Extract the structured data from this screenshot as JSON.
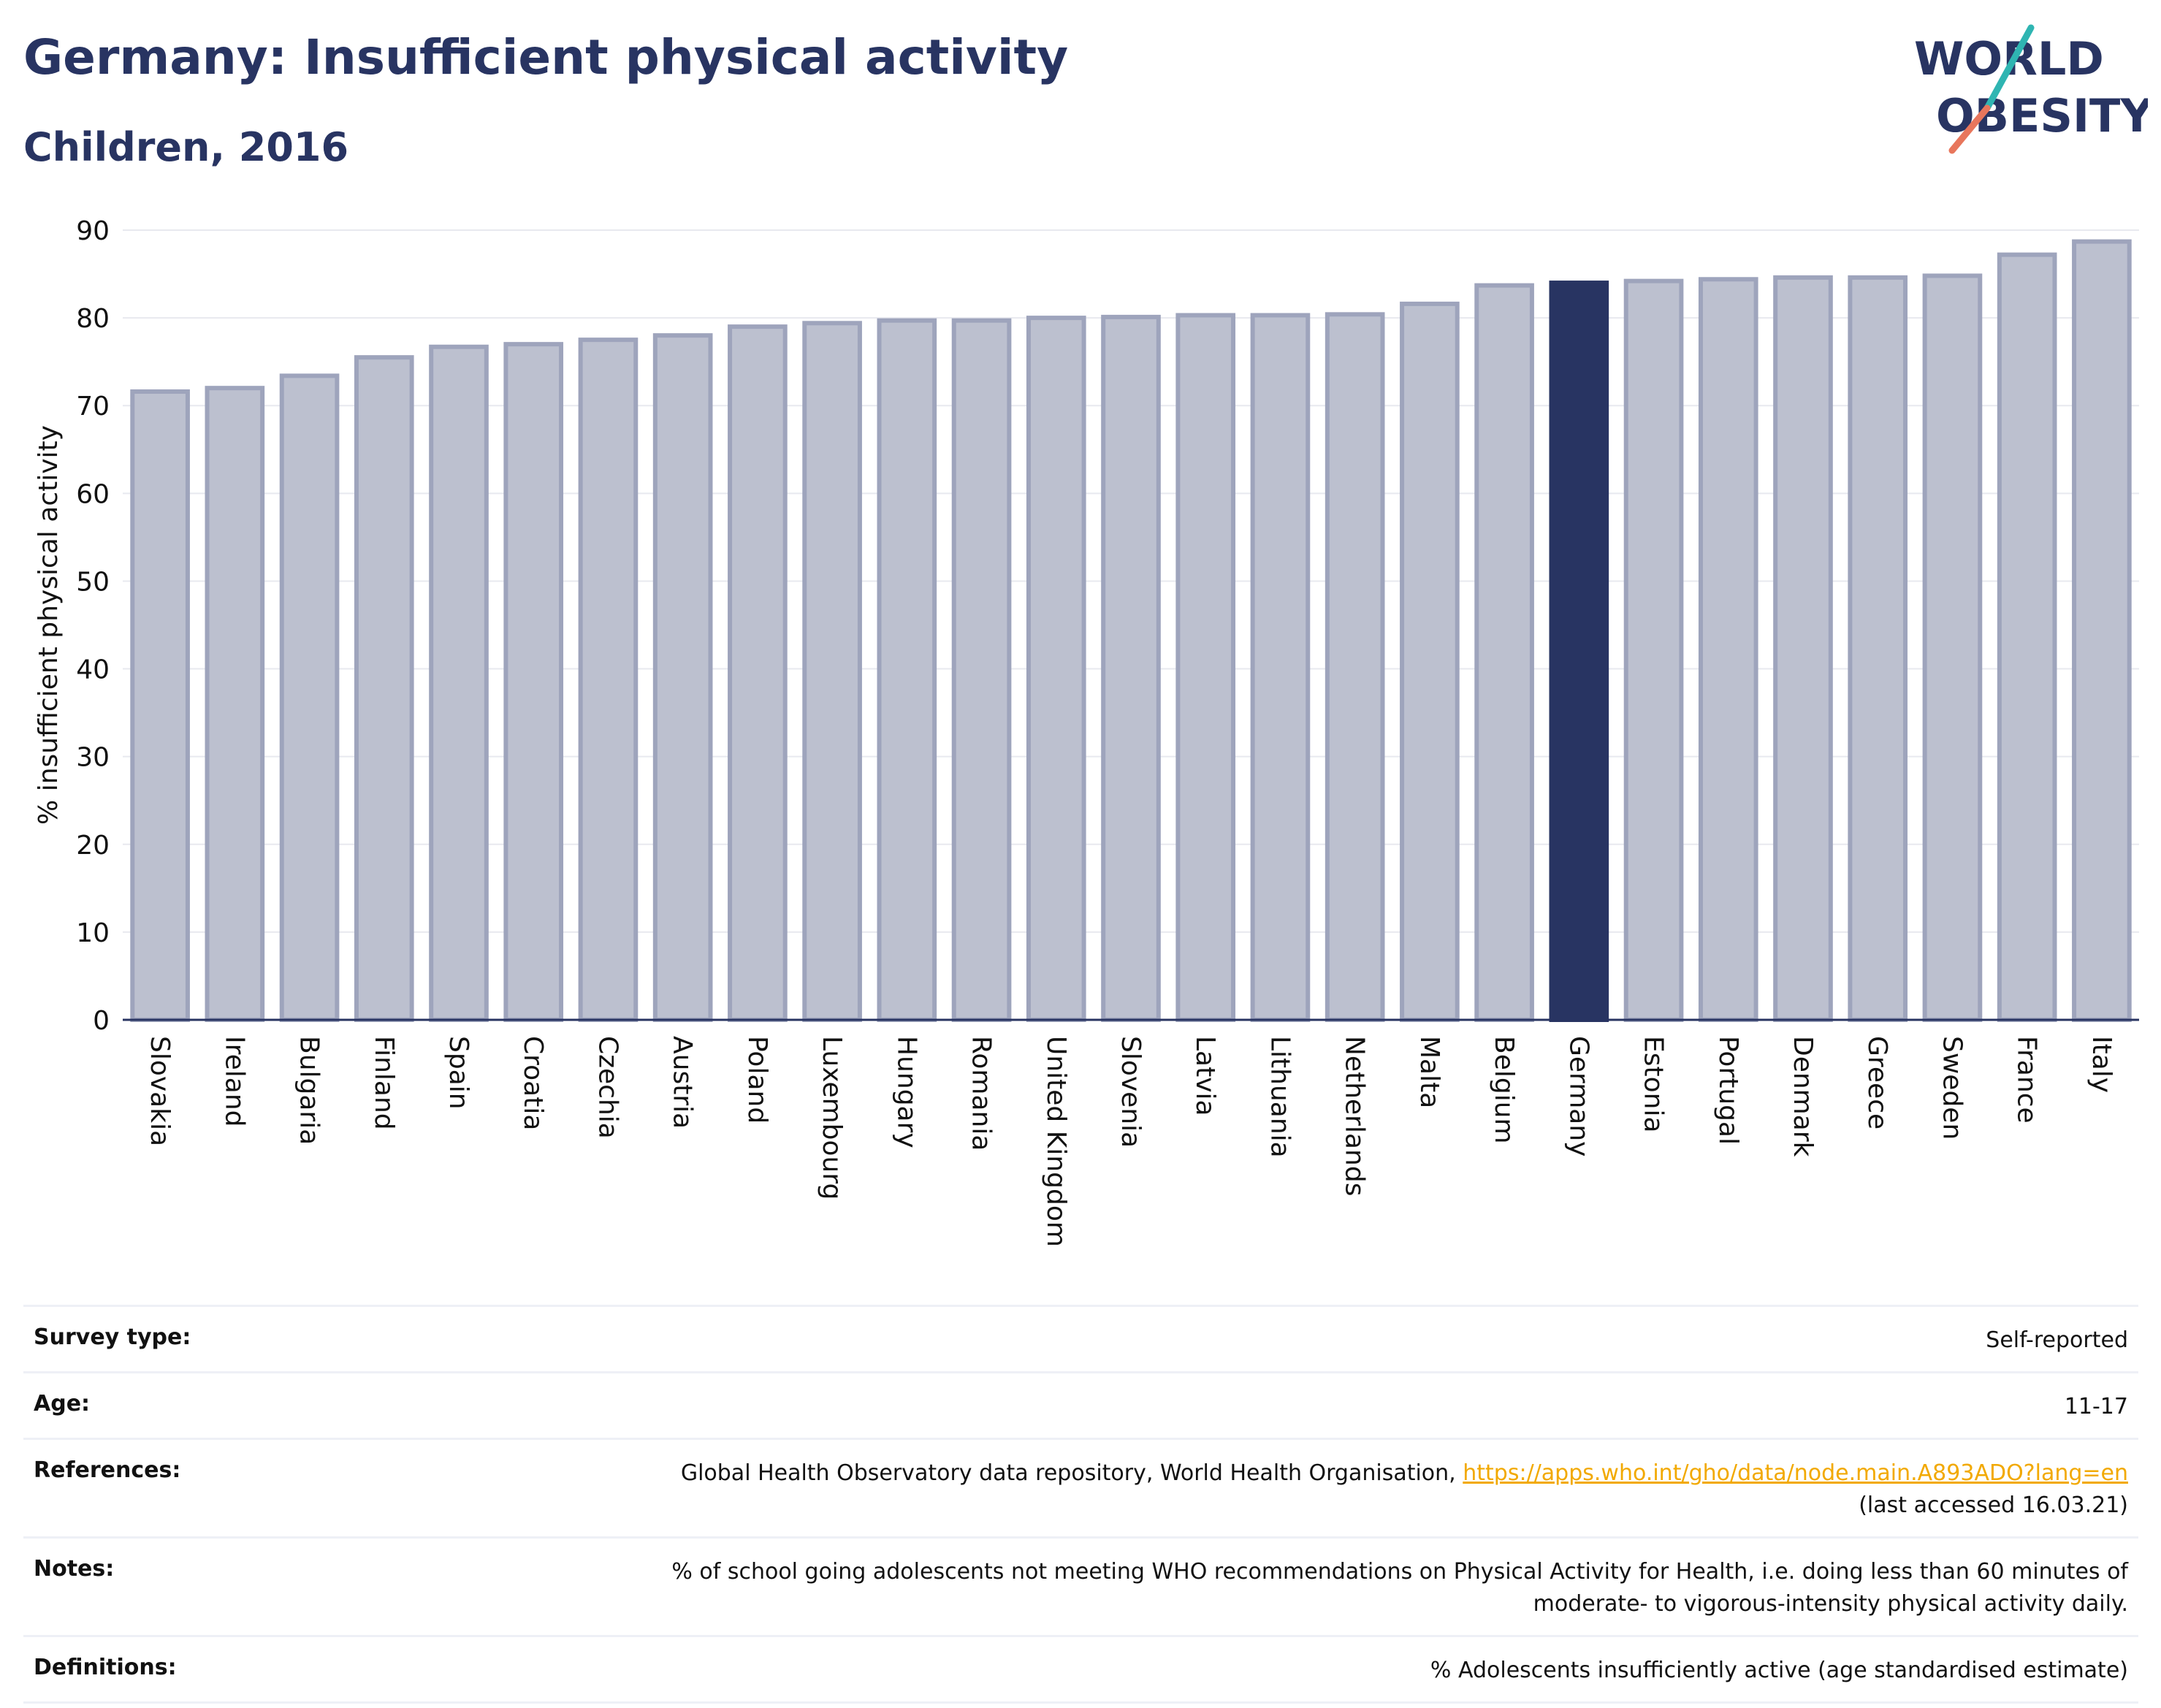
{
  "header": {
    "title": "Germany: Insufficient physical activity",
    "subtitle": "Children, 2016"
  },
  "logo": {
    "line1": "WORLD",
    "line2": "OBESITY"
  },
  "colors": {
    "highlight": "#283462",
    "bar": "#bcc0cf",
    "bar_border": "#9ea4bc",
    "text": "#283462"
  },
  "chart_data": {
    "type": "bar",
    "categories": [
      "Slovakia",
      "Ireland",
      "Bulgaria",
      "Finland",
      "Spain",
      "Croatia",
      "Czechia",
      "Austria",
      "Poland",
      "Luxembourg",
      "Hungary",
      "Romania",
      "United Kingdom",
      "Slovenia",
      "Latvia",
      "Lithuania",
      "Netherlands",
      "Malta",
      "Belgium",
      "Germany",
      "Estonia",
      "Portugal",
      "Denmark",
      "Greece",
      "Sweden",
      "France",
      "Italy"
    ],
    "values": [
      71.6,
      72.0,
      73.4,
      75.5,
      76.7,
      77.0,
      77.5,
      78.0,
      79.0,
      79.4,
      79.7,
      79.7,
      80.0,
      80.1,
      80.3,
      80.3,
      80.4,
      81.6,
      83.7,
      84.0,
      84.2,
      84.4,
      84.6,
      84.6,
      84.8,
      87.2,
      88.7
    ],
    "highlight": "Germany",
    "ylabel": "% insufficient physical activity",
    "ylim": [
      0,
      90
    ],
    "yticks": [
      0,
      10,
      20,
      30,
      40,
      50,
      60,
      70,
      80,
      90
    ],
    "grid": true
  },
  "info": {
    "survey_label": "Survey type:",
    "survey_value": "Self-reported",
    "age_label": "Age:",
    "age_value": "11-17",
    "references_label": "References:",
    "references_text": "Global Health Observatory data repository, World Health Organisation,",
    "references_link": "https://apps.who.int/gho/data/node.main.A893ADO?lang=en",
    "references_accessed": "(last accessed 16.03.21)",
    "notes_label": "Notes:",
    "notes_line1": "% of school going adolescents not meeting WHO recommendations on Physical Activity for Health, i.e. doing less than 60 minutes of",
    "notes_line2": "moderate- to vigorous-intensity physical activity daily.",
    "definitions_label": "Definitions:",
    "definitions_value": "% Adolescents insufficiently active (age standardised estimate)"
  }
}
